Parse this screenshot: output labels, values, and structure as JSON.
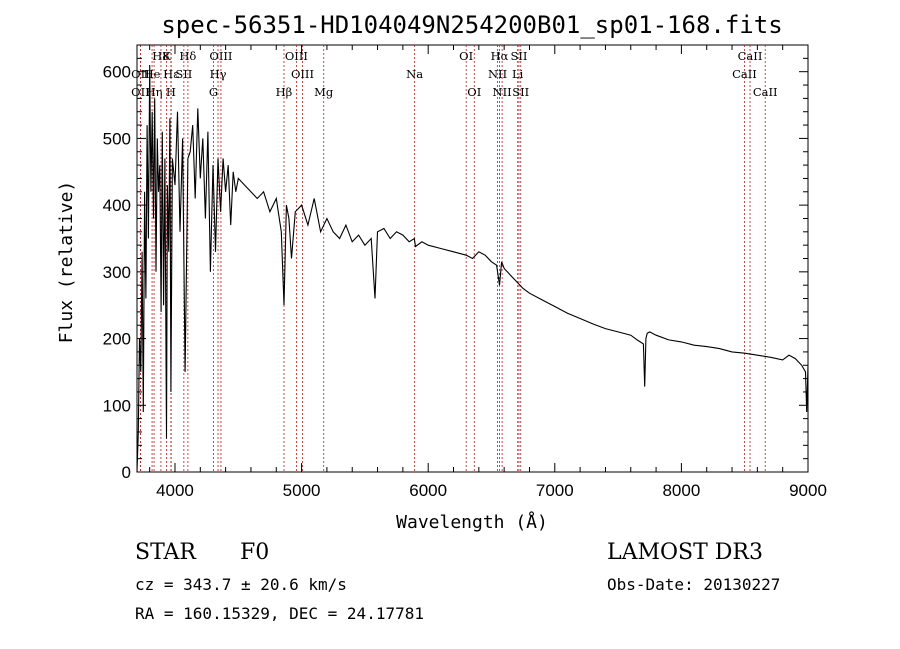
{
  "chart_data": {
    "type": "line",
    "title": "spec-56351-HD104049N254200B01_sp01-168.fits",
    "xlabel": "Wavelength (Å)",
    "ylabel": "Flux (relative)",
    "xlim": [
      3700,
      9000
    ],
    "ylim": [
      0,
      640
    ],
    "x_ticks": [
      4000,
      5000,
      6000,
      7000,
      8000,
      9000
    ],
    "y_ticks": [
      0,
      100,
      200,
      300,
      400,
      500,
      600
    ],
    "grid": false,
    "series": [
      {
        "name": "spectrum",
        "x": [
          3700,
          3710,
          3720,
          3730,
          3740,
          3750,
          3760,
          3770,
          3780,
          3790,
          3800,
          3810,
          3820,
          3830,
          3840,
          3850,
          3860,
          3870,
          3880,
          3890,
          3900,
          3910,
          3920,
          3933,
          3940,
          3950,
          3960,
          3968,
          3980,
          4000,
          4020,
          4040,
          4060,
          4080,
          4102,
          4120,
          4140,
          4160,
          4180,
          4200,
          4220,
          4240,
          4260,
          4280,
          4300,
          4320,
          4340,
          4360,
          4380,
          4400,
          4420,
          4440,
          4460,
          4480,
          4500,
          4550,
          4600,
          4650,
          4700,
          4750,
          4800,
          4840,
          4861,
          4880,
          4900,
          4920,
          4950,
          5000,
          5050,
          5100,
          5150,
          5200,
          5250,
          5300,
          5350,
          5400,
          5450,
          5500,
          5550,
          5580,
          5600,
          5650,
          5700,
          5750,
          5800,
          5850,
          5890,
          5900,
          5950,
          6000,
          6100,
          6200,
          6300,
          6350,
          6400,
          6450,
          6500,
          6540,
          6563,
          6580,
          6600,
          6650,
          6700,
          6750,
          6800,
          6900,
          7000,
          7100,
          7200,
          7300,
          7400,
          7500,
          7600,
          7650,
          7700,
          7710,
          7720,
          7730,
          7750,
          7800,
          7900,
          8000,
          8100,
          8200,
          8300,
          8400,
          8500,
          8600,
          8700,
          8800,
          8850,
          8900,
          8950,
          8980,
          8990,
          9000
        ],
        "values": [
          0,
          60,
          200,
          150,
          330,
          90,
          420,
          260,
          520,
          350,
          610,
          420,
          540,
          380,
          560,
          300,
          500,
          420,
          460,
          240,
          510,
          250,
          470,
          50,
          430,
          330,
          530,
          120,
          470,
          430,
          540,
          360,
          500,
          150,
          470,
          480,
          520,
          410,
          545,
          440,
          500,
          380,
          510,
          300,
          460,
          330,
          470,
          390,
          470,
          420,
          460,
          370,
          450,
          420,
          440,
          430,
          420,
          410,
          420,
          390,
          410,
          360,
          250,
          400,
          380,
          320,
          390,
          400,
          370,
          410,
          360,
          380,
          360,
          350,
          370,
          345,
          355,
          340,
          350,
          260,
          360,
          365,
          350,
          360,
          355,
          345,
          350,
          338,
          345,
          340,
          335,
          330,
          325,
          320,
          330,
          325,
          315,
          310,
          280,
          315,
          305,
          295,
          285,
          275,
          268,
          258,
          248,
          238,
          230,
          222,
          215,
          210,
          205,
          198,
          192,
          128,
          200,
          208,
          210,
          205,
          198,
          195,
          190,
          188,
          185,
          180,
          178,
          175,
          172,
          168,
          175,
          170,
          160,
          150,
          90,
          160
        ]
      }
    ],
    "lines": [
      {
        "label": "H8",
        "x": 3889,
        "row": 0
      },
      {
        "label": "K",
        "x": 3933,
        "row": 0
      },
      {
        "label": "Hδ",
        "x": 4102,
        "row": 0
      },
      {
        "label": "OIII",
        "x": 4363,
        "row": 0
      },
      {
        "label": "OIII",
        "x": 4959,
        "row": 0
      },
      {
        "label": "OI",
        "x": 6300,
        "row": 0
      },
      {
        "label": "Hα",
        "x": 6563,
        "row": 0
      },
      {
        "label": "SII",
        "x": 6717,
        "row": 0
      },
      {
        "label": "CaII",
        "x": 8542,
        "row": 0
      },
      {
        "label": "OII",
        "x": 3727,
        "row": 1
      },
      {
        "label": "He",
        "x": 3819,
        "row": 1
      },
      {
        "label": "Hε",
        "x": 3970,
        "row": 1
      },
      {
        "label": "SII",
        "x": 4070,
        "row": 1
      },
      {
        "label": "Hγ",
        "x": 4340,
        "row": 1
      },
      {
        "label": "OIII",
        "x": 5007,
        "row": 1
      },
      {
        "label": "Na",
        "x": 5893,
        "row": 1
      },
      {
        "label": "NII",
        "x": 6548,
        "row": 1
      },
      {
        "label": "Li",
        "x": 6707,
        "row": 1
      },
      {
        "label": "CaII",
        "x": 8498,
        "row": 1
      },
      {
        "label": "OII",
        "x": 3727,
        "row": 2
      },
      {
        "label": "Hη",
        "x": 3835,
        "row": 2
      },
      {
        "label": "H",
        "x": 3968,
        "row": 2
      },
      {
        "label": "G",
        "x": 4304,
        "row": 2
      },
      {
        "label": "Hβ",
        "x": 4861,
        "row": 2
      },
      {
        "label": "Mg",
        "x": 5175,
        "row": 2
      },
      {
        "label": "OI",
        "x": 6364,
        "row": 2
      },
      {
        "label": "NII",
        "x": 6584,
        "row": 2
      },
      {
        "label": "SII",
        "x": 6731,
        "row": 2
      },
      {
        "label": "CaII",
        "x": 8662,
        "row": 2
      }
    ]
  },
  "info": {
    "class": "STAR",
    "subclass": "F0",
    "survey": "LAMOST DR3",
    "cz": "cz = 343.7 ± 20.6 km/s",
    "obs_date": "Obs-Date: 20130227",
    "radec": "RA = 160.15329, DEC =  24.17781"
  }
}
